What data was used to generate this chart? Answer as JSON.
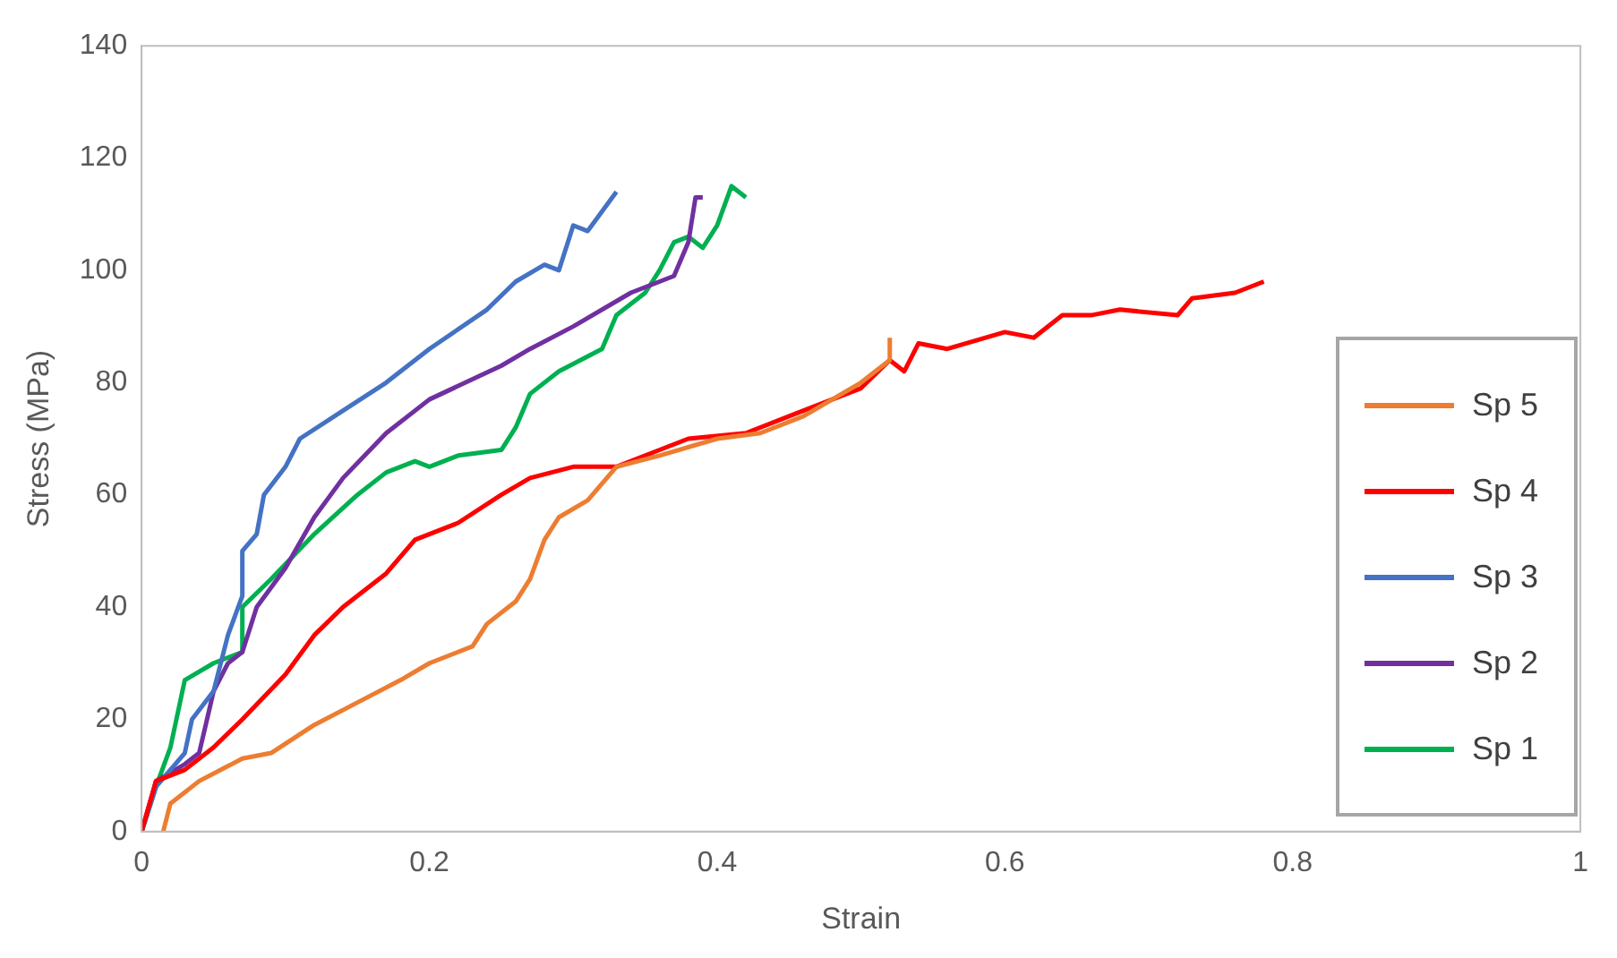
{
  "chart_data": {
    "type": "line",
    "xlabel": "Strain",
    "ylabel": "Stress (MPa)",
    "xlim": [
      0,
      1
    ],
    "xticks": [
      0,
      0.2,
      0.4,
      0.6,
      0.8,
      1
    ],
    "ylim": [
      0,
      140
    ],
    "yticks": [
      0,
      20,
      40,
      60,
      80,
      100,
      120,
      140
    ],
    "grid": false,
    "legend": "right",
    "marker": "none",
    "line_style": "solid",
    "series": [
      {
        "name": "Sp 5",
        "color": "#ed7d31",
        "x": [
          0.015,
          0.02,
          0.04,
          0.07,
          0.09,
          0.12,
          0.15,
          0.18,
          0.2,
          0.23,
          0.24,
          0.26,
          0.27,
          0.28,
          0.29,
          0.31,
          0.33,
          0.36,
          0.4,
          0.43,
          0.46,
          0.5,
          0.52,
          0.52
        ],
        "values": [
          0,
          5,
          9,
          13,
          14,
          19,
          23,
          27,
          30,
          33,
          37,
          41,
          45,
          52,
          56,
          59,
          65,
          67,
          70,
          71,
          74,
          80,
          84,
          88
        ]
      },
      {
        "name": "Sp 4",
        "color": "#ff0000",
        "x": [
          0,
          0.01,
          0.03,
          0.05,
          0.07,
          0.1,
          0.12,
          0.14,
          0.17,
          0.19,
          0.22,
          0.25,
          0.27,
          0.3,
          0.33,
          0.36,
          0.38,
          0.42,
          0.45,
          0.48,
          0.5,
          0.52,
          0.53,
          0.54,
          0.56,
          0.6,
          0.62,
          0.64,
          0.66,
          0.68,
          0.72,
          0.73,
          0.76,
          0.78
        ],
        "values": [
          0,
          9,
          11,
          15,
          20,
          28,
          35,
          40,
          46,
          52,
          55,
          60,
          63,
          65,
          65,
          68,
          70,
          71,
          74,
          77,
          79,
          84,
          82,
          87,
          86,
          89,
          88,
          92,
          92,
          93,
          92,
          95,
          96,
          98
        ]
      },
      {
        "name": "Sp 3",
        "color": "#4472c4",
        "x": [
          0,
          0.01,
          0.02,
          0.03,
          0.035,
          0.05,
          0.06,
          0.07,
          0.07,
          0.08,
          0.085,
          0.1,
          0.11,
          0.14,
          0.17,
          0.2,
          0.24,
          0.26,
          0.28,
          0.29,
          0.3,
          0.31,
          0.33
        ],
        "values": [
          0,
          8,
          11,
          14,
          20,
          25,
          35,
          42,
          50,
          53,
          60,
          65,
          70,
          75,
          80,
          86,
          93,
          98,
          101,
          100,
          108,
          107,
          114
        ]
      },
      {
        "name": "Sp 2",
        "color": "#7030a0",
        "x": [
          0,
          0.01,
          0.03,
          0.04,
          0.05,
          0.06,
          0.07,
          0.08,
          0.1,
          0.12,
          0.14,
          0.17,
          0.2,
          0.25,
          0.27,
          0.3,
          0.34,
          0.37,
          0.38,
          0.385,
          0.39
        ],
        "values": [
          0,
          9,
          12,
          14,
          25,
          30,
          32,
          40,
          47,
          56,
          63,
          71,
          77,
          83,
          86,
          90,
          96,
          99,
          105,
          113,
          113
        ]
      },
      {
        "name": "Sp 1",
        "color": "#00b050",
        "x": [
          0,
          0.01,
          0.02,
          0.03,
          0.05,
          0.07,
          0.07,
          0.09,
          0.12,
          0.15,
          0.17,
          0.19,
          0.2,
          0.22,
          0.25,
          0.26,
          0.27,
          0.29,
          0.32,
          0.33,
          0.35,
          0.36,
          0.37,
          0.38,
          0.39,
          0.4,
          0.41,
          0.42
        ],
        "values": [
          0,
          8,
          15,
          27,
          30,
          32,
          40,
          45,
          53,
          60,
          64,
          66,
          65,
          67,
          68,
          72,
          78,
          82,
          86,
          92,
          96,
          100,
          105,
          106,
          104,
          108,
          115,
          113
        ]
      }
    ]
  }
}
